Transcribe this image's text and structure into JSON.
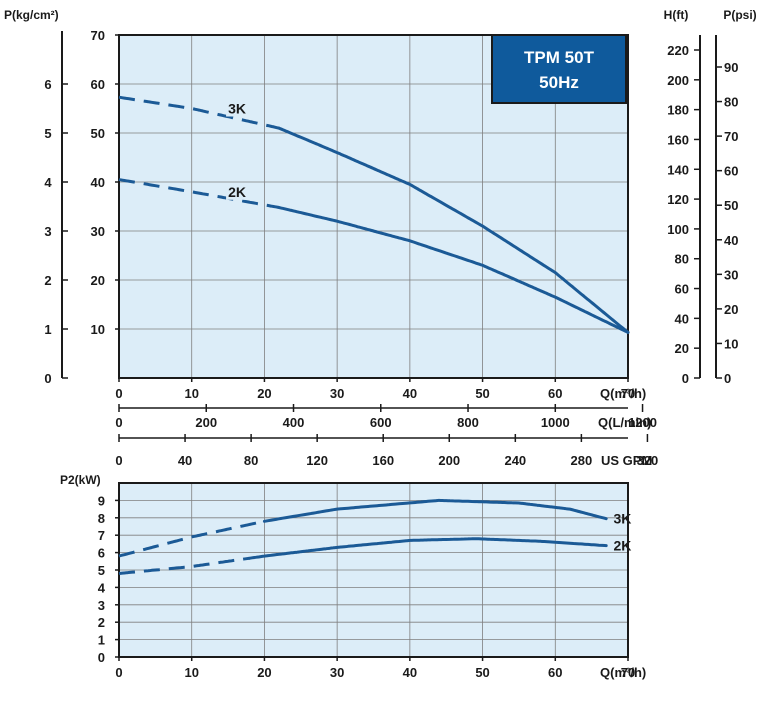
{
  "chart_data": [
    {
      "type": "line",
      "title_box": {
        "line1": "TPM 50T",
        "line2": "50Hz"
      },
      "ylabel_left": "P(kg/cm²)",
      "left_ticks": [
        "0",
        "1",
        "2",
        "3",
        "4",
        "5",
        "6"
      ],
      "xlabel": "Q(m³/h)",
      "xlim": [
        0,
        70
      ],
      "ylim": [
        0,
        70
      ],
      "x_ticks": [
        "0",
        "10",
        "20",
        "30",
        "40",
        "50",
        "60",
        "70"
      ],
      "y_ticks": [
        "10",
        "20",
        "30",
        "40",
        "50",
        "60",
        "70"
      ],
      "grid": true,
      "series": [
        {
          "name": "3K",
          "x": [
            0,
            10,
            22,
            30,
            40,
            50,
            60,
            70
          ],
          "y": [
            57.3,
            55,
            51,
            46,
            39.5,
            31,
            21.5,
            9.3
          ],
          "dashed_until": 22,
          "label_x": 15,
          "label_y": 55
        },
        {
          "name": "2K",
          "x": [
            0,
            10,
            22,
            30,
            40,
            50,
            60,
            70
          ],
          "y": [
            40.5,
            38,
            34.8,
            32,
            28,
            23,
            16.5,
            9.3
          ],
          "dashed_until": 22,
          "label_x": 15,
          "label_y": 38
        }
      ],
      "right_axis_h": {
        "label": "H(ft)",
        "ticks": [
          "0",
          "20",
          "40",
          "60",
          "80",
          "100",
          "120",
          "140",
          "160",
          "180",
          "200",
          "220"
        ]
      },
      "right_axis_p": {
        "label": "P(psi)",
        "ticks": [
          "0",
          "10",
          "20",
          "30",
          "40",
          "50",
          "60",
          "70",
          "80",
          "90"
        ]
      },
      "secondary_x_axes": [
        {
          "label": "Q(L/min)",
          "ticks": [
            "0",
            "200",
            "400",
            "600",
            "800",
            "1000",
            "1200"
          ]
        },
        {
          "label": "US GPM",
          "ticks": [
            "0",
            "40",
            "80",
            "120",
            "160",
            "200",
            "240",
            "280",
            "320"
          ]
        }
      ]
    },
    {
      "type": "line",
      "ylabel": "P2(kW)",
      "xlabel": "Q(m³/h)",
      "xlim": [
        0,
        70
      ],
      "ylim": [
        0,
        10
      ],
      "x_ticks": [
        "0",
        "10",
        "20",
        "30",
        "40",
        "50",
        "60",
        "70"
      ],
      "y_ticks": [
        "0",
        "1",
        "2",
        "3",
        "4",
        "5",
        "6",
        "7",
        "8",
        "9"
      ],
      "grid": true,
      "series": [
        {
          "name": "3K",
          "x": [
            0,
            10,
            20,
            30,
            44,
            55,
            62,
            67
          ],
          "y": [
            5.8,
            6.9,
            7.8,
            8.5,
            9.0,
            8.85,
            8.5,
            7.95
          ],
          "dashed_until": 20,
          "label_x": 68,
          "label_y": 7.95
        },
        {
          "name": "2K",
          "x": [
            0,
            10,
            20,
            30,
            40,
            49,
            58,
            67
          ],
          "y": [
            4.8,
            5.2,
            5.8,
            6.3,
            6.7,
            6.8,
            6.65,
            6.4
          ],
          "dashed_until": 18,
          "label_x": 68,
          "label_y": 6.4
        }
      ]
    }
  ],
  "colors": {
    "plot_bg": "#dcedf8",
    "curve": "#1b5a96",
    "box_fill": "#0f5a9c",
    "grid": "#7f7f7f",
    "axis": "#1a1a1a"
  }
}
